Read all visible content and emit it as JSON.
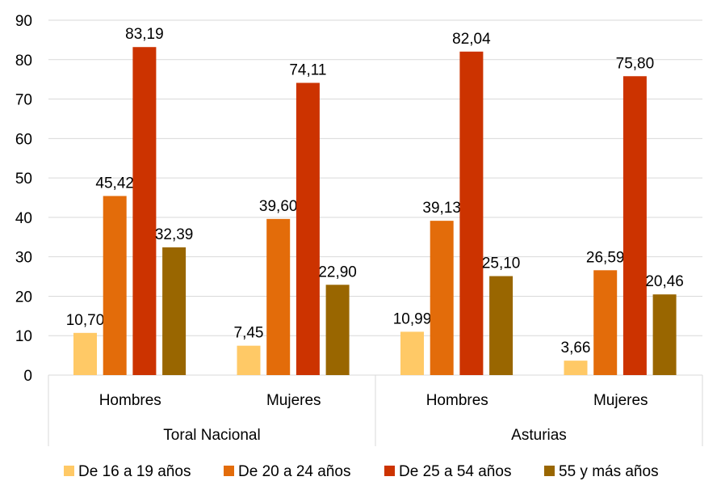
{
  "chart_data": {
    "type": "bar",
    "title": "",
    "xlabel": "",
    "ylabel": "",
    "ylim": [
      0,
      90
    ],
    "yticks": [
      "0",
      "10",
      "20",
      "30",
      "40",
      "50",
      "60",
      "70",
      "80",
      "90"
    ],
    "grid": true,
    "legend_position": "bottom",
    "groups": [
      {
        "label": "Toral Nacional",
        "categories": [
          "Hombres",
          "Mujeres"
        ]
      },
      {
        "label": "Asturias",
        "categories": [
          "Hombres",
          "Mujeres"
        ]
      }
    ],
    "categories": [
      "Toral Nacional - Hombres",
      "Toral Nacional - Mujeres",
      "Asturias - Hombres",
      "Asturias - Mujeres"
    ],
    "series": [
      {
        "name": "De 16 a 19 años",
        "color": "#FFC966",
        "values": [
          10.7,
          7.45,
          10.99,
          3.66
        ],
        "labels": [
          "10,70",
          "7,45",
          "10,99",
          "3,66"
        ]
      },
      {
        "name": "De 20 a 24 años",
        "color": "#E36C0A",
        "values": [
          45.42,
          39.6,
          39.13,
          26.59
        ],
        "labels": [
          "45,42",
          "39,60",
          "39,13",
          "26,59"
        ]
      },
      {
        "name": "De 25 a 54 años",
        "color": "#CC3300",
        "values": [
          83.19,
          74.11,
          82.04,
          75.8
        ],
        "labels": [
          "83,19",
          "74,11",
          "82,04",
          "75,80"
        ]
      },
      {
        "name": "55 y más años",
        "color": "#996600",
        "values": [
          32.39,
          22.9,
          25.1,
          20.46
        ],
        "labels": [
          "32,39",
          "22,90",
          "25,10",
          "20,46"
        ]
      }
    ]
  }
}
